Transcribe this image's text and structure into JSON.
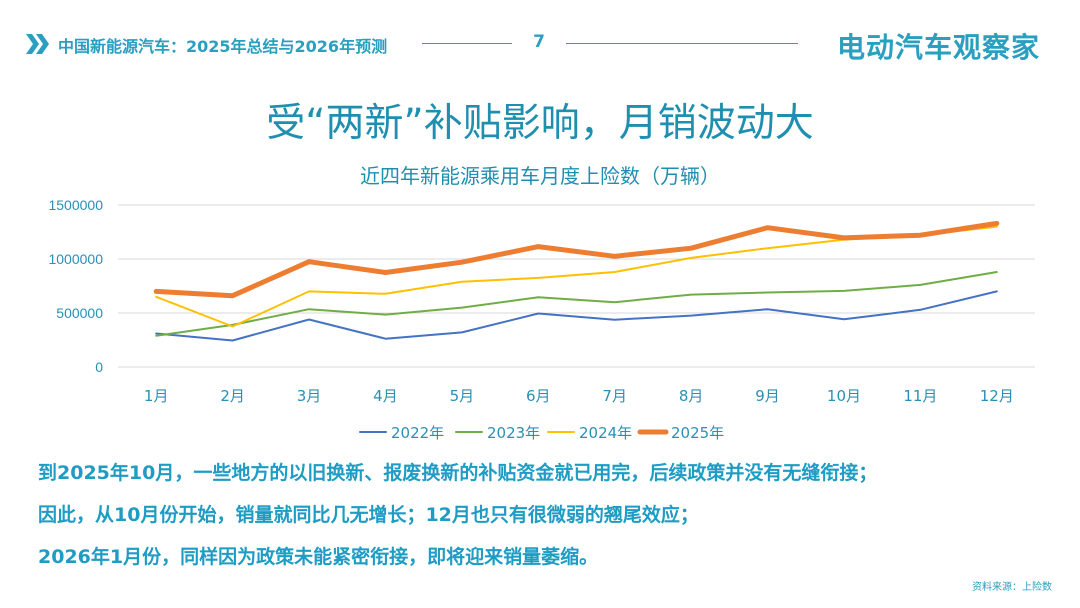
{
  "header": {
    "title": "中国新能源汽车：2025年总结与2026年预测",
    "page_number": "7",
    "brand": "电动汽车观察家"
  },
  "main_title": "受“两新”补贴影响，月销波动大",
  "chart_data": {
    "type": "line",
    "title": "近四年新能源乘用车月度上险数（万辆）",
    "xlabel": "",
    "ylabel": "",
    "categories": [
      "1月",
      "2月",
      "3月",
      "4月",
      "5月",
      "6月",
      "7月",
      "8月",
      "9月",
      "10月",
      "11月",
      "12月"
    ],
    "ylim": [
      0,
      1500000
    ],
    "yticks": [
      "0",
      "500000",
      "1000000",
      "1500000"
    ],
    "grid": true,
    "legend_position": "bottom",
    "series": [
      {
        "name": "2022年",
        "color": "#4472c4",
        "values": [
          310000,
          245000,
          440000,
          262000,
          320000,
          495000,
          438000,
          476000,
          535000,
          442000,
          530000,
          700000
        ]
      },
      {
        "name": "2023年",
        "color": "#70ad47",
        "values": [
          290000,
          390000,
          535000,
          485000,
          550000,
          645000,
          600000,
          670000,
          690000,
          705000,
          760000,
          880000
        ]
      },
      {
        "name": "2024年",
        "color": "#ffc000",
        "values": [
          650000,
          375000,
          700000,
          678000,
          790000,
          825000,
          880000,
          1010000,
          1100000,
          1180000,
          1220000,
          1300000
        ]
      },
      {
        "name": "2025年",
        "color": "#ed7d31",
        "values": [
          700000,
          660000,
          975000,
          875000,
          970000,
          1115000,
          1025000,
          1100000,
          1290000,
          1195000,
          1220000,
          1330000
        ]
      }
    ]
  },
  "body": {
    "line1": "到2025年10月，一些地方的以旧换新、报废换新的补贴资金就已用完，后续政策并没有无缝衔接；",
    "line2": "因此，从10月份开始，销量就同比几无增长；12月也只有很微弱的翘尾效应；",
    "line3": "2026年1月份，同样因为政策未能紧密衔接，即将迎来销量萎缩。"
  },
  "footnote": "资料来源：上险数"
}
